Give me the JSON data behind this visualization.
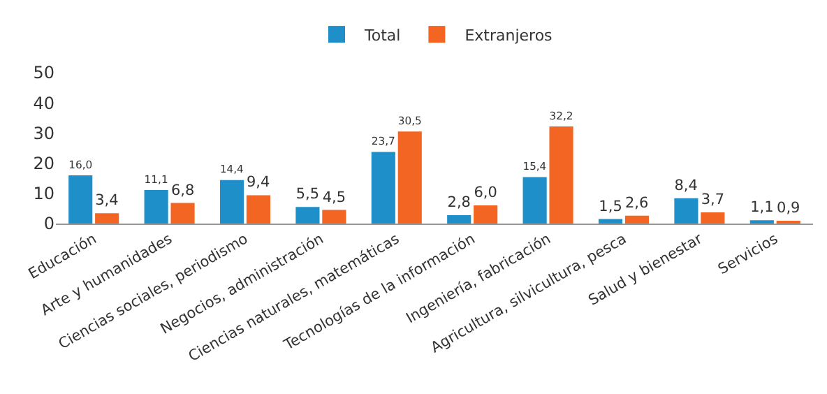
{
  "chart_data": {
    "type": "bar",
    "categories": [
      "Educación",
      "Arte y humanidades",
      "Ciencias sociales, periodismo",
      "Negocios, administración",
      "Ciencias naturales, matemáticas",
      "Tecnologías de la información",
      "Ingeniería, fabricación",
      "Agricultura, silvicultura, pesca",
      "Salud y bienestar",
      "Servicios"
    ],
    "series": [
      {
        "name": "Total",
        "color": "#1f8fca",
        "values": [
          16.0,
          11.1,
          14.4,
          5.5,
          23.7,
          2.8,
          15.4,
          1.5,
          8.4,
          1.1
        ],
        "value_labels": [
          "16,0",
          "11,1",
          "14,4",
          "5,5",
          "23,7",
          "2,8",
          "15,4",
          "1,5",
          "8,4",
          "1,1"
        ]
      },
      {
        "name": "Extranjeros",
        "color": "#f26522",
        "values": [
          3.4,
          6.8,
          9.4,
          4.5,
          30.5,
          6.0,
          32.2,
          2.6,
          3.7,
          0.9
        ],
        "value_labels": [
          "3,4",
          "6,8",
          "9,4",
          "4,5",
          "30,5",
          "6,0",
          "32,2",
          "2,6",
          "3,7",
          "0,9"
        ]
      }
    ],
    "ylim": [
      0,
      50
    ],
    "yticks": [
      0,
      10,
      20,
      30,
      40,
      50
    ],
    "grid": false,
    "legend": "top"
  }
}
